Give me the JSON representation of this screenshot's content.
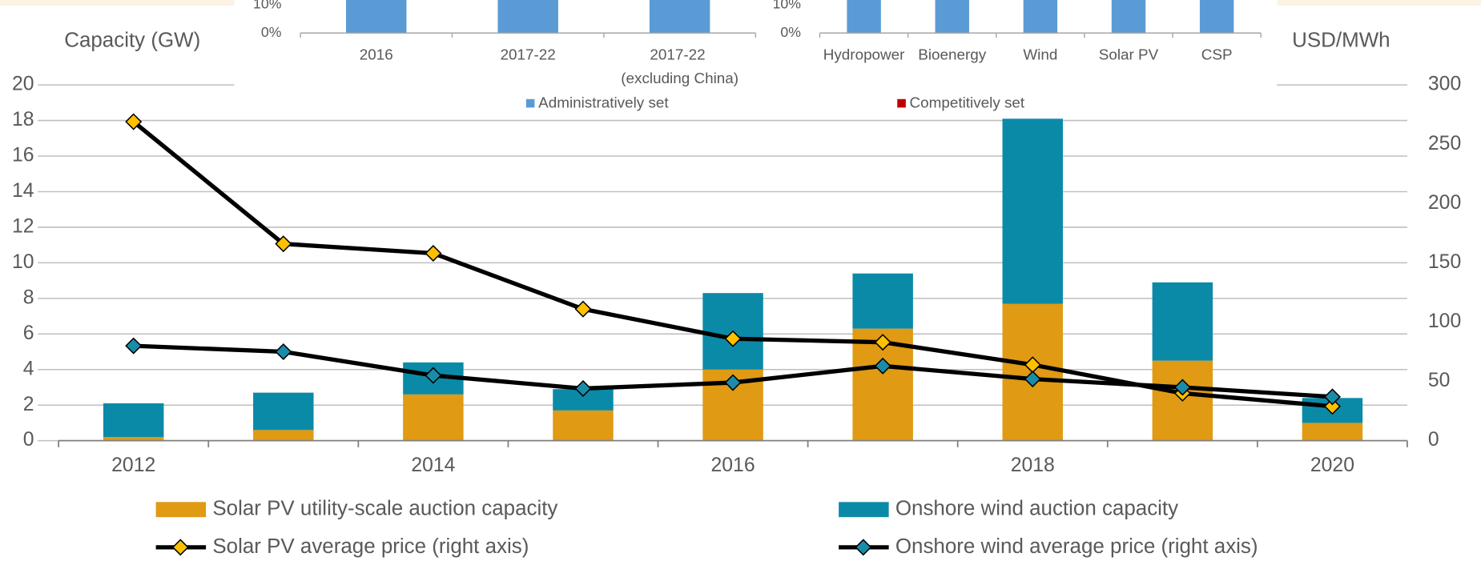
{
  "chart_data": [
    {
      "type": "bar",
      "y_label": "Capacity (GW)",
      "y2_label": "USD/MWh",
      "categories": [
        2012,
        2013,
        2014,
        2015,
        2016,
        2017,
        2018,
        2019,
        2020
      ],
      "x_labels": [
        "2012",
        null,
        "2014",
        null,
        "2016",
        null,
        "2018",
        null,
        "2020"
      ],
      "ylim": [
        0,
        20
      ],
      "yticks": [
        0,
        2,
        4,
        6,
        8,
        10,
        12,
        14,
        16,
        18,
        20
      ],
      "y2lim": [
        0,
        300
      ],
      "y2ticks": [
        0,
        50,
        100,
        150,
        200,
        250,
        300
      ],
      "grid": true,
      "series": [
        {
          "name": "Solar PV utility-scale auction capacity",
          "kind": "bar",
          "color": "#e09a13",
          "values": [
            0.2,
            0.6,
            2.6,
            1.7,
            4.0,
            6.3,
            7.7,
            4.5,
            1.0
          ]
        },
        {
          "name": "Onshore wind auction capacity",
          "kind": "bar",
          "color": "#0b8aa8",
          "values": [
            1.9,
            2.1,
            1.8,
            1.2,
            4.3,
            3.1,
            10.4,
            4.4,
            1.4
          ]
        },
        {
          "name": "Solar PV average price (right axis)",
          "kind": "line",
          "axis": "y2",
          "color": "#000000",
          "marker_color": "#ffc000",
          "values": [
            269,
            166,
            158,
            111,
            86,
            83,
            64,
            40,
            29
          ]
        },
        {
          "name": "Onshore wind average price (right axis)",
          "kind": "line",
          "axis": "y2",
          "color": "#000000",
          "marker_color": "#1a8ca8",
          "values": [
            80,
            75,
            55,
            44,
            49,
            63,
            52,
            45,
            37
          ]
        }
      ]
    },
    {
      "type": "bar",
      "categories": [
        "2016",
        "2017-22",
        "2017-22 (excluding China)"
      ],
      "ylim": [
        0,
        10
      ],
      "yticks": [
        {
          "value": 0,
          "label": "0%"
        },
        {
          "value": 10,
          "label": "10%"
        }
      ],
      "color": "#5b9bd5",
      "values": [
        20,
        20,
        20
      ]
    },
    {
      "type": "bar",
      "categories": [
        "Hydropower",
        "Bioenergy",
        "Wind",
        "Solar PV",
        "CSP"
      ],
      "ylim": [
        0,
        10
      ],
      "yticks": [
        {
          "value": 0,
          "label": "0%"
        },
        {
          "value": 10,
          "label": "10%"
        }
      ],
      "color": "#5b9bd5",
      "values": [
        20,
        20,
        20,
        20,
        20
      ]
    }
  ],
  "inset_legend": [
    {
      "name": "Administratively set",
      "color": "#5b9bd5"
    },
    {
      "name": "Competitively set",
      "color": "#c00000"
    }
  ]
}
